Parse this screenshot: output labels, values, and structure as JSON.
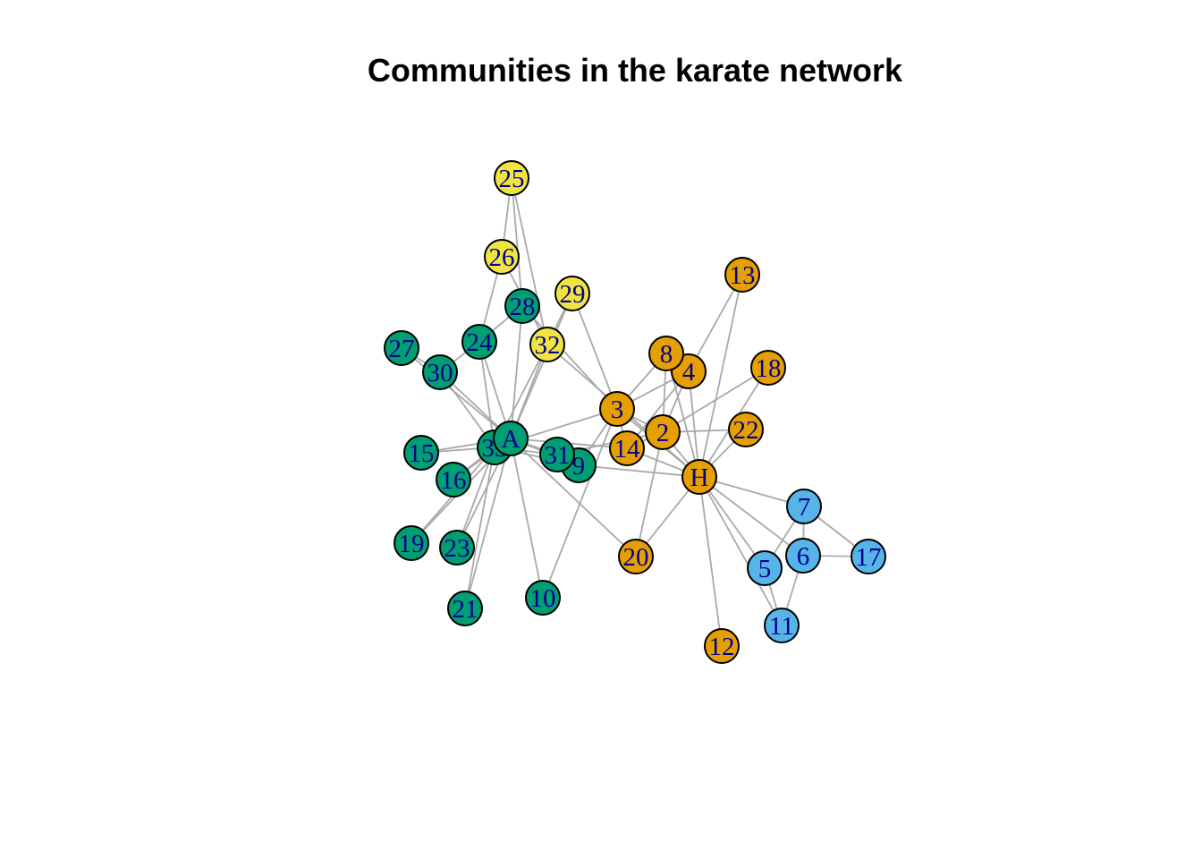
{
  "title": "Communities in the karate network",
  "colors": {
    "edge": "#A9A9A9",
    "label": "#00008B",
    "community_1": "#E69F00",
    "community_2": "#56B4E9",
    "community_3": "#009E73",
    "community_4": "#F0E442"
  },
  "nodes": [
    {
      "id": 1,
      "label": "H",
      "community": 1
    },
    {
      "id": 2,
      "label": "2",
      "community": 1
    },
    {
      "id": 3,
      "label": "3",
      "community": 1
    },
    {
      "id": 4,
      "label": "4",
      "community": 1
    },
    {
      "id": 5,
      "label": "5",
      "community": 2
    },
    {
      "id": 6,
      "label": "6",
      "community": 2
    },
    {
      "id": 7,
      "label": "7",
      "community": 2
    },
    {
      "id": 8,
      "label": "8",
      "community": 1
    },
    {
      "id": 9,
      "label": "9",
      "community": 3
    },
    {
      "id": 10,
      "label": "10",
      "community": 3
    },
    {
      "id": 11,
      "label": "11",
      "community": 2
    },
    {
      "id": 12,
      "label": "12",
      "community": 1
    },
    {
      "id": 13,
      "label": "13",
      "community": 1
    },
    {
      "id": 14,
      "label": "14",
      "community": 1
    },
    {
      "id": 15,
      "label": "15",
      "community": 3
    },
    {
      "id": 16,
      "label": "16",
      "community": 3
    },
    {
      "id": 17,
      "label": "17",
      "community": 2
    },
    {
      "id": 18,
      "label": "18",
      "community": 1
    },
    {
      "id": 19,
      "label": "19",
      "community": 3
    },
    {
      "id": 20,
      "label": "20",
      "community": 1
    },
    {
      "id": 21,
      "label": "21",
      "community": 3
    },
    {
      "id": 22,
      "label": "22",
      "community": 1
    },
    {
      "id": 23,
      "label": "23",
      "community": 3
    },
    {
      "id": 24,
      "label": "24",
      "community": 3
    },
    {
      "id": 25,
      "label": "25",
      "community": 4
    },
    {
      "id": 26,
      "label": "26",
      "community": 4
    },
    {
      "id": 27,
      "label": "27",
      "community": 3
    },
    {
      "id": 28,
      "label": "28",
      "community": 3
    },
    {
      "id": 29,
      "label": "29",
      "community": 4
    },
    {
      "id": 30,
      "label": "30",
      "community": 3
    },
    {
      "id": 31,
      "label": "31",
      "community": 3
    },
    {
      "id": 32,
      "label": "32",
      "community": 4
    },
    {
      "id": 33,
      "label": "33",
      "community": 3
    },
    {
      "id": 34,
      "label": "A",
      "community": 3
    }
  ],
  "edges": [
    [
      1,
      2
    ],
    [
      1,
      3
    ],
    [
      1,
      4
    ],
    [
      1,
      5
    ],
    [
      1,
      6
    ],
    [
      1,
      7
    ],
    [
      1,
      8
    ],
    [
      1,
      9
    ],
    [
      1,
      11
    ],
    [
      1,
      12
    ],
    [
      1,
      13
    ],
    [
      1,
      14
    ],
    [
      1,
      18
    ],
    [
      1,
      20
    ],
    [
      1,
      22
    ],
    [
      1,
      32
    ],
    [
      2,
      3
    ],
    [
      2,
      4
    ],
    [
      2,
      8
    ],
    [
      2,
      14
    ],
    [
      2,
      18
    ],
    [
      2,
      20
    ],
    [
      2,
      22
    ],
    [
      2,
      31
    ],
    [
      3,
      4
    ],
    [
      3,
      8
    ],
    [
      3,
      9
    ],
    [
      3,
      10
    ],
    [
      3,
      14
    ],
    [
      3,
      28
    ],
    [
      3,
      29
    ],
    [
      3,
      33
    ],
    [
      4,
      8
    ],
    [
      4,
      13
    ],
    [
      4,
      14
    ],
    [
      5,
      7
    ],
    [
      5,
      11
    ],
    [
      6,
      7
    ],
    [
      6,
      11
    ],
    [
      6,
      17
    ],
    [
      7,
      17
    ],
    [
      9,
      31
    ],
    [
      9,
      33
    ],
    [
      9,
      34
    ],
    [
      10,
      34
    ],
    [
      14,
      34
    ],
    [
      15,
      33
    ],
    [
      15,
      34
    ],
    [
      16,
      33
    ],
    [
      16,
      34
    ],
    [
      19,
      33
    ],
    [
      19,
      34
    ],
    [
      20,
      34
    ],
    [
      21,
      33
    ],
    [
      21,
      34
    ],
    [
      23,
      33
    ],
    [
      23,
      34
    ],
    [
      24,
      26
    ],
    [
      24,
      28
    ],
    [
      24,
      30
    ],
    [
      24,
      33
    ],
    [
      24,
      34
    ],
    [
      25,
      26
    ],
    [
      25,
      28
    ],
    [
      25,
      32
    ],
    [
      26,
      32
    ],
    [
      27,
      30
    ],
    [
      27,
      34
    ],
    [
      28,
      34
    ],
    [
      29,
      32
    ],
    [
      29,
      34
    ],
    [
      30,
      33
    ],
    [
      30,
      34
    ],
    [
      31,
      33
    ],
    [
      31,
      34
    ],
    [
      32,
      33
    ],
    [
      32,
      34
    ],
    [
      33,
      34
    ]
  ]
}
